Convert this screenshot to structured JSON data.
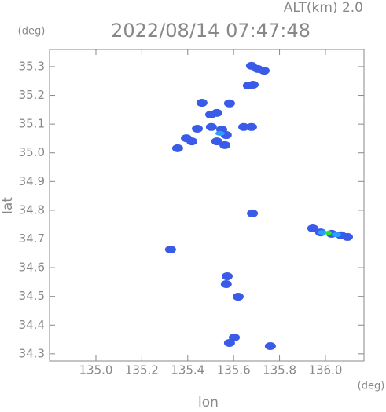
{
  "chart_data": {
    "type": "scatter",
    "title": "2022/08/14 07:47:48",
    "subtitle": "ALT(km) 2.0",
    "y_unit": "(deg)",
    "x_unit": "(deg)",
    "x_label": "lon",
    "y_label": "lat",
    "xlim": [
      134.798,
      136.168
    ],
    "ylim": [
      34.275,
      35.36
    ],
    "xticks": [
      {
        "value": 135.0,
        "label": "135.0"
      },
      {
        "value": 135.2,
        "label": "135.2"
      },
      {
        "value": 135.4,
        "label": "135.4"
      },
      {
        "value": 135.6,
        "label": "135.6"
      },
      {
        "value": 135.8,
        "label": "135.8"
      },
      {
        "value": 136.0,
        "label": "136.0"
      }
    ],
    "yticks": [
      {
        "value": 34.3,
        "label": "34.3"
      },
      {
        "value": 34.4,
        "label": "34.4"
      },
      {
        "value": 34.5,
        "label": "34.5"
      },
      {
        "value": 34.6,
        "label": "34.6"
      },
      {
        "value": 34.7,
        "label": "34.7"
      },
      {
        "value": 34.8,
        "label": "34.8"
      },
      {
        "value": 34.9,
        "label": "34.9"
      },
      {
        "value": 35.0,
        "label": "35.0"
      },
      {
        "value": 35.1,
        "label": "35.1"
      },
      {
        "value": 35.2,
        "label": "35.2"
      },
      {
        "value": 35.3,
        "label": "35.3"
      }
    ],
    "series": [
      {
        "color": "#3a5be8",
        "x": [
          135.678,
          135.705,
          135.733,
          135.664,
          135.685,
          135.462,
          135.582,
          135.5,
          135.527,
          135.503,
          135.548,
          135.568,
          135.527,
          135.562,
          135.442,
          135.394,
          135.418,
          135.644,
          135.678,
          135.356,
          135.682,
          135.945,
          135.979,
          136.027,
          136.068,
          136.096,
          135.325,
          135.572,
          135.568,
          135.62,
          135.603,
          135.582,
          135.76
        ],
        "values": [
          35.303,
          35.292,
          35.286,
          35.234,
          35.237,
          35.174,
          35.172,
          35.133,
          35.139,
          35.09,
          35.081,
          35.062,
          35.04,
          35.027,
          35.084,
          35.051,
          35.04,
          35.09,
          35.09,
          35.016,
          34.789,
          34.737,
          34.723,
          34.718,
          34.713,
          34.707,
          34.663,
          34.57,
          34.543,
          34.499,
          34.357,
          34.338,
          34.327
        ]
      },
      {
        "color": "#29a0ff",
        "x": [
          135.986,
          136.048,
          135.541
        ],
        "values": [
          34.723,
          34.715,
          35.068
        ]
      },
      {
        "color": "#33dd33",
        "x": [
          136.014
        ],
        "values": [
          34.721
        ]
      }
    ]
  }
}
